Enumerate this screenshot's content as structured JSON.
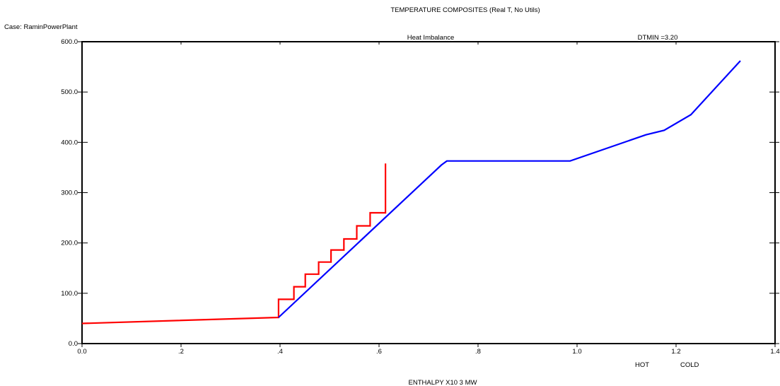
{
  "chart_data": {
    "type": "line",
    "title": "TEMPERATURE COMPOSITES (Real T, No Utils)",
    "case_label": "Case: RaminPowerPlant",
    "warning": "Heat Imbalance",
    "dtmin": "DTMIN =3.20",
    "xlabel": "ENTHALPY X10 3 MW",
    "xlim": [
      0,
      1.4
    ],
    "ylim": [
      0,
      600
    ],
    "x_ticks": [
      0,
      0.2,
      0.4,
      0.6,
      0.8,
      1.0,
      1.2,
      1.4
    ],
    "x_tick_labels": [
      "0.0",
      ".2",
      ".4",
      ".6",
      ".8",
      "1.0",
      "1.2",
      "1.4"
    ],
    "y_ticks": [
      0,
      100,
      200,
      300,
      400,
      500,
      600
    ],
    "y_tick_labels": [
      "0.0",
      "100.0",
      "200.0",
      "300.0",
      "400.0",
      "500.0",
      "600.0"
    ],
    "colors": {
      "hot": "#ff0000",
      "cold": "#0000ff",
      "warning": "#ff0000"
    },
    "series": [
      {
        "name": "HOT",
        "color": "#ff0000",
        "points": [
          [
            0.0,
            40
          ],
          [
            0.397,
            52
          ],
          [
            0.397,
            88
          ],
          [
            0.428,
            88
          ],
          [
            0.428,
            113
          ],
          [
            0.451,
            113
          ],
          [
            0.451,
            138
          ],
          [
            0.478,
            138
          ],
          [
            0.478,
            162
          ],
          [
            0.503,
            162
          ],
          [
            0.503,
            186
          ],
          [
            0.529,
            186
          ],
          [
            0.529,
            208
          ],
          [
            0.555,
            208
          ],
          [
            0.555,
            234
          ],
          [
            0.582,
            234
          ],
          [
            0.582,
            260
          ],
          [
            0.613,
            260
          ],
          [
            0.613,
            358
          ]
        ]
      },
      {
        "name": "COLD",
        "color": "#0000ff",
        "points": [
          [
            0.397,
            52
          ],
          [
            0.726,
            355
          ],
          [
            0.737,
            363
          ],
          [
            0.986,
            363
          ],
          [
            1.139,
            415
          ],
          [
            1.176,
            424
          ],
          [
            1.23,
            455
          ],
          [
            1.33,
            562
          ]
        ]
      }
    ]
  }
}
